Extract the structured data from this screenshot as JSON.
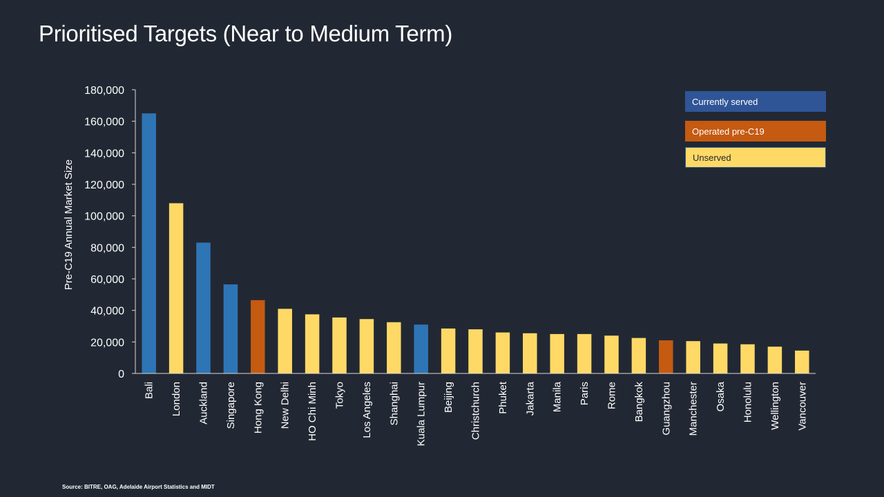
{
  "title": "Prioritised Targets (Near to Medium Term)",
  "source": "Source: BITRE, OAG, Adelaide Airport Statistics and MIDT",
  "colors": {
    "background": "#222833",
    "currently_served": "#2e75b6",
    "operated_pre_c19": "#c55a11",
    "unserved": "#ffd966"
  },
  "legend": [
    {
      "label": "Currently served",
      "color": "#2f5597",
      "text_color": "#ffffff"
    },
    {
      "label": "Operated pre-C19",
      "color": "#c55a11",
      "text_color": "#ffffff"
    },
    {
      "label": "Unserved",
      "color": "#ffd966",
      "text_color": "#222833"
    }
  ],
  "chart_data": {
    "type": "bar",
    "title": "",
    "xlabel": "",
    "ylabel": "Pre-C19 Annual Market Size",
    "ylim": [
      0,
      180000
    ],
    "yticks": [
      0,
      20000,
      40000,
      60000,
      80000,
      100000,
      120000,
      140000,
      160000,
      180000
    ],
    "ytick_labels": [
      "0",
      "20,000",
      "40,000",
      "60,000",
      "80,000",
      "100,000",
      "120,000",
      "140,000",
      "160,000",
      "180,000"
    ],
    "grid": false,
    "legend_position": "top-right",
    "categories": [
      "Bali",
      "London",
      "Auckland",
      "Singapore",
      "Hong Kong",
      "New Delhi",
      "HO Chi Minh",
      "Tokyo",
      "Los Angeles",
      "Shanghai",
      "Kuala Lumpur",
      "Beijing",
      "Christchurch",
      "Phuket",
      "Jakarta",
      "Manila",
      "Paris",
      "Rome",
      "Bangkok",
      "Guangzhou",
      "Manchester",
      "Osaka",
      "Honolulu",
      "Wellington",
      "Vancouver"
    ],
    "values": [
      165000,
      108000,
      83000,
      56500,
      46500,
      41000,
      37500,
      35500,
      34500,
      32500,
      31000,
      28500,
      28000,
      26000,
      25500,
      25000,
      25000,
      24000,
      22500,
      21000,
      20500,
      19000,
      18500,
      17000,
      14500
    ],
    "status": [
      "Currently served",
      "Unserved",
      "Currently served",
      "Currently served",
      "Operated pre-C19",
      "Unserved",
      "Unserved",
      "Unserved",
      "Unserved",
      "Unserved",
      "Currently served",
      "Unserved",
      "Unserved",
      "Unserved",
      "Unserved",
      "Unserved",
      "Unserved",
      "Unserved",
      "Unserved",
      "Operated pre-C19",
      "Unserved",
      "Unserved",
      "Unserved",
      "Unserved",
      "Unserved"
    ]
  }
}
